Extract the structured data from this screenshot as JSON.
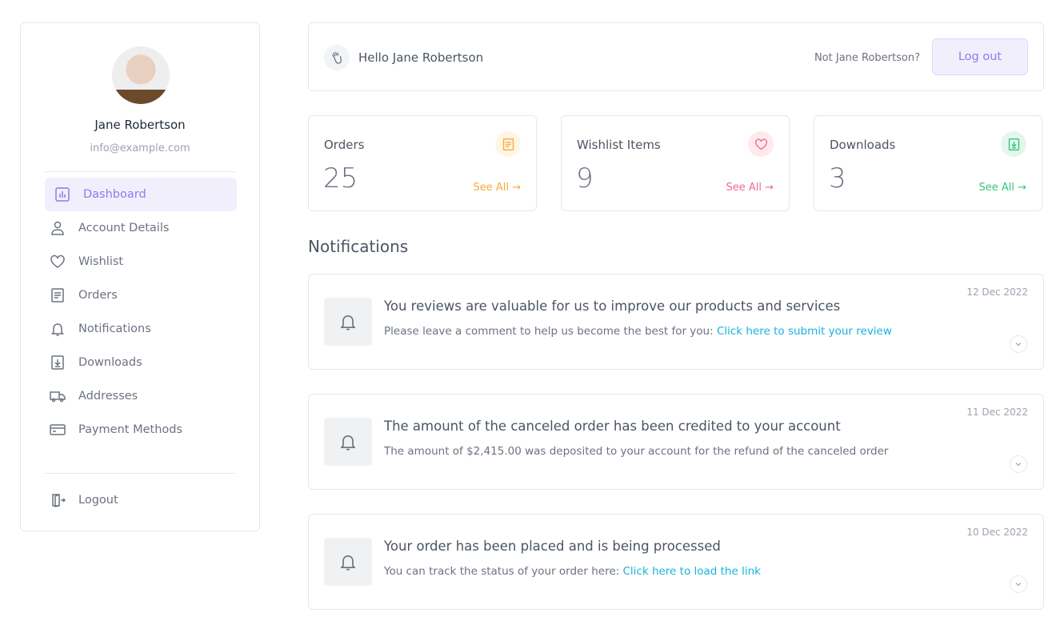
{
  "user": {
    "name": "Jane Robertson",
    "email": "info@example.com"
  },
  "sidebar": {
    "items": [
      {
        "label": "Dashboard",
        "icon": "chart-bar-icon",
        "active": true
      },
      {
        "label": "Account Details",
        "icon": "user-icon"
      },
      {
        "label": "Wishlist",
        "icon": "heart-icon"
      },
      {
        "label": "Orders",
        "icon": "document-icon"
      },
      {
        "label": "Notifications",
        "icon": "bell-icon"
      },
      {
        "label": "Downloads",
        "icon": "download-icon"
      },
      {
        "label": "Addresses",
        "icon": "truck-icon"
      },
      {
        "label": "Payment Methods",
        "icon": "credit-card-icon"
      }
    ],
    "logout": "Logout"
  },
  "header": {
    "greeting": "Hello Jane Robertson",
    "not_me": "Not Jane Robertson?",
    "logout_label": "Log out"
  },
  "stats": [
    {
      "label": "Orders",
      "value": "25",
      "link": "See All →",
      "color": "#f5a93b",
      "bg": "#fef5e4"
    },
    {
      "label": "Wishlist Items",
      "value": "9",
      "link": "See All →",
      "color": "#f06a8a",
      "bg": "#fde9ee"
    },
    {
      "label": "Downloads",
      "value": "3",
      "link": "See All →",
      "color": "#34c47c",
      "bg": "#e3f7ec"
    }
  ],
  "notifications": {
    "title": "Notifications",
    "items": [
      {
        "title": "You reviews are valuable for us to improve our products and services",
        "text": "Please leave a comment to help us become the best for you: ",
        "link": "Click here to submit your review",
        "date": "12 Dec 2022"
      },
      {
        "title": "The amount of the canceled order has been credited to your account",
        "text": "The amount of $2,415.00  was deposited to your account for the refund of the canceled order",
        "link": "",
        "date": "11 Dec 2022"
      },
      {
        "title": "Your order has been placed and is being processed",
        "text": "You can track the status of your order here: ",
        "link": "Click here to load the link",
        "date": "10 Dec 2022"
      }
    ]
  }
}
